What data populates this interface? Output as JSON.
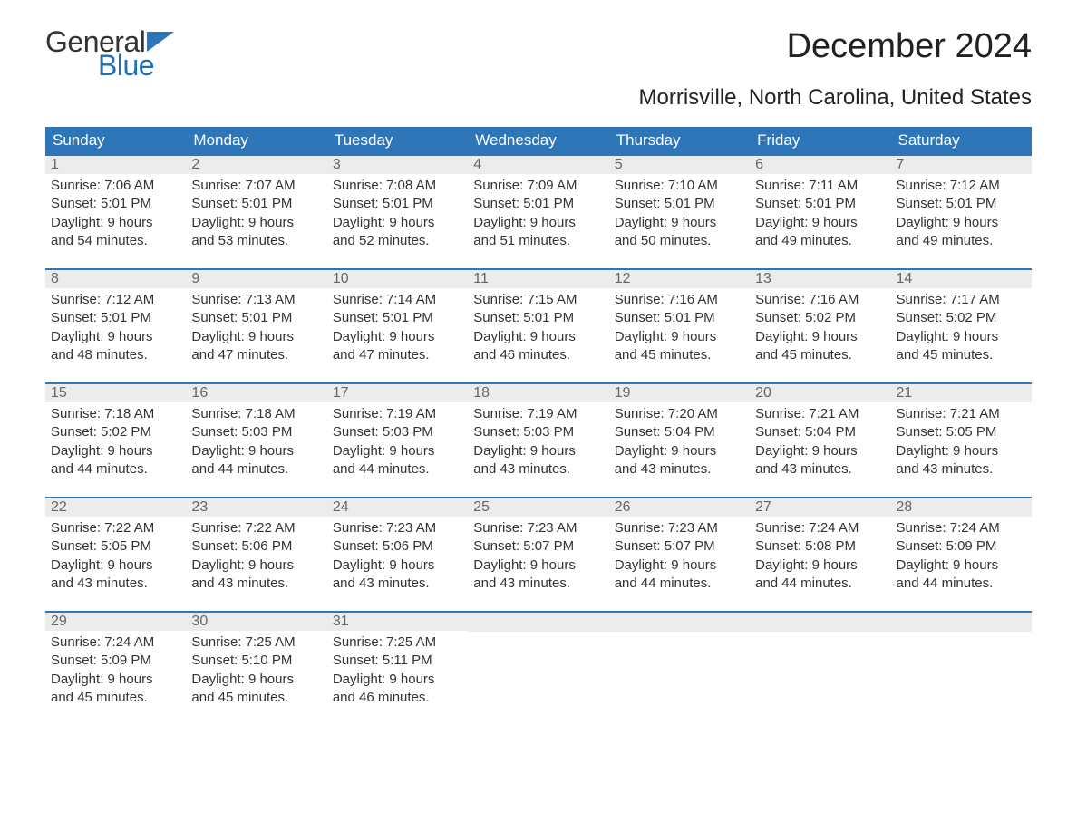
{
  "logo": {
    "general": "General",
    "blue": "Blue",
    "flag_color": "#2f76b8"
  },
  "title": "December 2024",
  "subtitle": "Morrisville, North Carolina, United States",
  "colors": {
    "header_bg": "#2f76b8",
    "header_text": "#ffffff",
    "daynum_bg": "#ececec",
    "daynum_text": "#666666",
    "body_text": "#333333",
    "row_border": "#2f76b8"
  },
  "typography": {
    "title_fontsize": 38,
    "subtitle_fontsize": 24,
    "header_fontsize": 17,
    "daynum_fontsize": 16,
    "body_fontsize": 15
  },
  "week_headers": [
    "Sunday",
    "Monday",
    "Tuesday",
    "Wednesday",
    "Thursday",
    "Friday",
    "Saturday"
  ],
  "weeks": [
    [
      {
        "n": "1",
        "sunrise": "Sunrise: 7:06 AM",
        "sunset": "Sunset: 5:01 PM",
        "d1": "Daylight: 9 hours",
        "d2": "and 54 minutes."
      },
      {
        "n": "2",
        "sunrise": "Sunrise: 7:07 AM",
        "sunset": "Sunset: 5:01 PM",
        "d1": "Daylight: 9 hours",
        "d2": "and 53 minutes."
      },
      {
        "n": "3",
        "sunrise": "Sunrise: 7:08 AM",
        "sunset": "Sunset: 5:01 PM",
        "d1": "Daylight: 9 hours",
        "d2": "and 52 minutes."
      },
      {
        "n": "4",
        "sunrise": "Sunrise: 7:09 AM",
        "sunset": "Sunset: 5:01 PM",
        "d1": "Daylight: 9 hours",
        "d2": "and 51 minutes."
      },
      {
        "n": "5",
        "sunrise": "Sunrise: 7:10 AM",
        "sunset": "Sunset: 5:01 PM",
        "d1": "Daylight: 9 hours",
        "d2": "and 50 minutes."
      },
      {
        "n": "6",
        "sunrise": "Sunrise: 7:11 AM",
        "sunset": "Sunset: 5:01 PM",
        "d1": "Daylight: 9 hours",
        "d2": "and 49 minutes."
      },
      {
        "n": "7",
        "sunrise": "Sunrise: 7:12 AM",
        "sunset": "Sunset: 5:01 PM",
        "d1": "Daylight: 9 hours",
        "d2": "and 49 minutes."
      }
    ],
    [
      {
        "n": "8",
        "sunrise": "Sunrise: 7:12 AM",
        "sunset": "Sunset: 5:01 PM",
        "d1": "Daylight: 9 hours",
        "d2": "and 48 minutes."
      },
      {
        "n": "9",
        "sunrise": "Sunrise: 7:13 AM",
        "sunset": "Sunset: 5:01 PM",
        "d1": "Daylight: 9 hours",
        "d2": "and 47 minutes."
      },
      {
        "n": "10",
        "sunrise": "Sunrise: 7:14 AM",
        "sunset": "Sunset: 5:01 PM",
        "d1": "Daylight: 9 hours",
        "d2": "and 47 minutes."
      },
      {
        "n": "11",
        "sunrise": "Sunrise: 7:15 AM",
        "sunset": "Sunset: 5:01 PM",
        "d1": "Daylight: 9 hours",
        "d2": "and 46 minutes."
      },
      {
        "n": "12",
        "sunrise": "Sunrise: 7:16 AM",
        "sunset": "Sunset: 5:01 PM",
        "d1": "Daylight: 9 hours",
        "d2": "and 45 minutes."
      },
      {
        "n": "13",
        "sunrise": "Sunrise: 7:16 AM",
        "sunset": "Sunset: 5:02 PM",
        "d1": "Daylight: 9 hours",
        "d2": "and 45 minutes."
      },
      {
        "n": "14",
        "sunrise": "Sunrise: 7:17 AM",
        "sunset": "Sunset: 5:02 PM",
        "d1": "Daylight: 9 hours",
        "d2": "and 45 minutes."
      }
    ],
    [
      {
        "n": "15",
        "sunrise": "Sunrise: 7:18 AM",
        "sunset": "Sunset: 5:02 PM",
        "d1": "Daylight: 9 hours",
        "d2": "and 44 minutes."
      },
      {
        "n": "16",
        "sunrise": "Sunrise: 7:18 AM",
        "sunset": "Sunset: 5:03 PM",
        "d1": "Daylight: 9 hours",
        "d2": "and 44 minutes."
      },
      {
        "n": "17",
        "sunrise": "Sunrise: 7:19 AM",
        "sunset": "Sunset: 5:03 PM",
        "d1": "Daylight: 9 hours",
        "d2": "and 44 minutes."
      },
      {
        "n": "18",
        "sunrise": "Sunrise: 7:19 AM",
        "sunset": "Sunset: 5:03 PM",
        "d1": "Daylight: 9 hours",
        "d2": "and 43 minutes."
      },
      {
        "n": "19",
        "sunrise": "Sunrise: 7:20 AM",
        "sunset": "Sunset: 5:04 PM",
        "d1": "Daylight: 9 hours",
        "d2": "and 43 minutes."
      },
      {
        "n": "20",
        "sunrise": "Sunrise: 7:21 AM",
        "sunset": "Sunset: 5:04 PM",
        "d1": "Daylight: 9 hours",
        "d2": "and 43 minutes."
      },
      {
        "n": "21",
        "sunrise": "Sunrise: 7:21 AM",
        "sunset": "Sunset: 5:05 PM",
        "d1": "Daylight: 9 hours",
        "d2": "and 43 minutes."
      }
    ],
    [
      {
        "n": "22",
        "sunrise": "Sunrise: 7:22 AM",
        "sunset": "Sunset: 5:05 PM",
        "d1": "Daylight: 9 hours",
        "d2": "and 43 minutes."
      },
      {
        "n": "23",
        "sunrise": "Sunrise: 7:22 AM",
        "sunset": "Sunset: 5:06 PM",
        "d1": "Daylight: 9 hours",
        "d2": "and 43 minutes."
      },
      {
        "n": "24",
        "sunrise": "Sunrise: 7:23 AM",
        "sunset": "Sunset: 5:06 PM",
        "d1": "Daylight: 9 hours",
        "d2": "and 43 minutes."
      },
      {
        "n": "25",
        "sunrise": "Sunrise: 7:23 AM",
        "sunset": "Sunset: 5:07 PM",
        "d1": "Daylight: 9 hours",
        "d2": "and 43 minutes."
      },
      {
        "n": "26",
        "sunrise": "Sunrise: 7:23 AM",
        "sunset": "Sunset: 5:07 PM",
        "d1": "Daylight: 9 hours",
        "d2": "and 44 minutes."
      },
      {
        "n": "27",
        "sunrise": "Sunrise: 7:24 AM",
        "sunset": "Sunset: 5:08 PM",
        "d1": "Daylight: 9 hours",
        "d2": "and 44 minutes."
      },
      {
        "n": "28",
        "sunrise": "Sunrise: 7:24 AM",
        "sunset": "Sunset: 5:09 PM",
        "d1": "Daylight: 9 hours",
        "d2": "and 44 minutes."
      }
    ],
    [
      {
        "n": "29",
        "sunrise": "Sunrise: 7:24 AM",
        "sunset": "Sunset: 5:09 PM",
        "d1": "Daylight: 9 hours",
        "d2": "and 45 minutes."
      },
      {
        "n": "30",
        "sunrise": "Sunrise: 7:25 AM",
        "sunset": "Sunset: 5:10 PM",
        "d1": "Daylight: 9 hours",
        "d2": "and 45 minutes."
      },
      {
        "n": "31",
        "sunrise": "Sunrise: 7:25 AM",
        "sunset": "Sunset: 5:11 PM",
        "d1": "Daylight: 9 hours",
        "d2": "and 46 minutes."
      },
      {
        "empty": true
      },
      {
        "empty": true
      },
      {
        "empty": true
      },
      {
        "empty": true
      }
    ]
  ]
}
